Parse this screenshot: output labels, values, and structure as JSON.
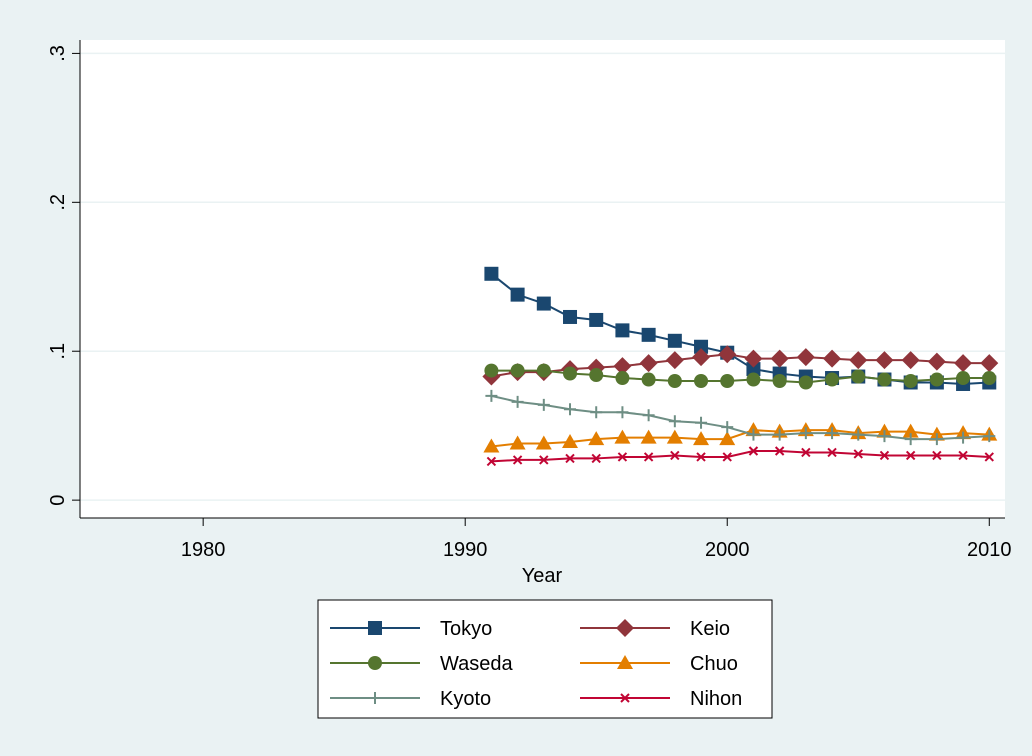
{
  "chart_data": {
    "type": "line",
    "x_label": "Year",
    "x": [
      1991,
      1992,
      1993,
      1994,
      1995,
      1996,
      1997,
      1998,
      1999,
      2000,
      2001,
      2002,
      2003,
      2004,
      2005,
      2006,
      2007,
      2008,
      2009,
      2010
    ],
    "xlim": [
      1975.3,
      2010.6
    ],
    "xticks": [
      1980,
      1990,
      2000,
      2010
    ],
    "ylim": [
      -0.012,
      0.309
    ],
    "yticks": [
      0,
      {
        "value": 0.1,
        "label": ".1"
      },
      {
        "value": 0.2,
        "label": ".2"
      },
      {
        "value": 0.3,
        "label": ".3"
      }
    ],
    "grid": true,
    "series": [
      {
        "name": "Tokyo",
        "color": "#1a476f",
        "marker": "square",
        "values": [
          0.152,
          0.138,
          0.132,
          0.123,
          0.121,
          0.114,
          0.111,
          0.107,
          0.103,
          0.099,
          0.088,
          0.085,
          0.083,
          0.082,
          0.083,
          0.081,
          0.079,
          0.079,
          0.078,
          0.079
        ]
      },
      {
        "name": "Keio",
        "color": "#90353b",
        "marker": "diamond",
        "values": [
          0.083,
          0.086,
          0.086,
          0.088,
          0.089,
          0.09,
          0.092,
          0.094,
          0.096,
          0.098,
          0.095,
          0.095,
          0.096,
          0.095,
          0.094,
          0.094,
          0.094,
          0.093,
          0.092,
          0.092
        ]
      },
      {
        "name": "Waseda",
        "color": "#55752f",
        "marker": "circle",
        "values": [
          0.087,
          0.087,
          0.087,
          0.085,
          0.084,
          0.082,
          0.081,
          0.08,
          0.08,
          0.08,
          0.081,
          0.08,
          0.079,
          0.081,
          0.083,
          0.081,
          0.08,
          0.081,
          0.082,
          0.082
        ]
      },
      {
        "name": "Chuo",
        "color": "#e37e00",
        "marker": "triangle",
        "values": [
          0.036,
          0.038,
          0.038,
          0.039,
          0.041,
          0.042,
          0.042,
          0.042,
          0.041,
          0.041,
          0.047,
          0.046,
          0.047,
          0.047,
          0.045,
          0.046,
          0.046,
          0.044,
          0.045,
          0.044
        ]
      },
      {
        "name": "Kyoto",
        "color": "#6e8e84",
        "marker": "plus",
        "values": [
          0.07,
          0.066,
          0.064,
          0.061,
          0.059,
          0.059,
          0.057,
          0.053,
          0.052,
          0.049,
          0.044,
          0.044,
          0.045,
          0.045,
          0.044,
          0.043,
          0.041,
          0.041,
          0.042,
          0.043
        ]
      },
      {
        "name": "Nihon",
        "color": "#c10534",
        "marker": "x",
        "values": [
          0.026,
          0.027,
          0.027,
          0.028,
          0.028,
          0.029,
          0.029,
          0.03,
          0.029,
          0.029,
          0.033,
          0.033,
          0.032,
          0.032,
          0.031,
          0.03,
          0.03,
          0.03,
          0.03,
          0.029
        ]
      }
    ]
  }
}
